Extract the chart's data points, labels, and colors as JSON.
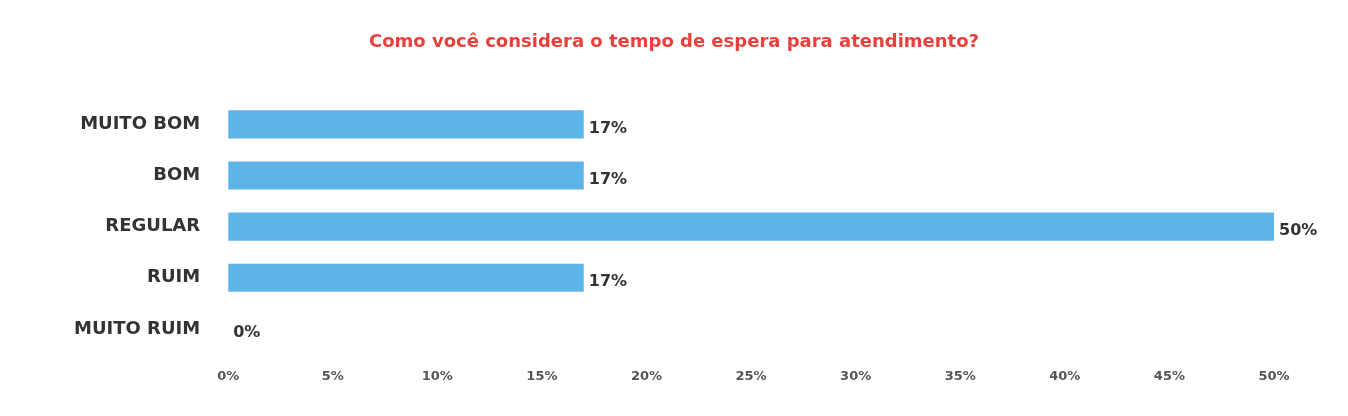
{
  "chart_data": {
    "type": "bar",
    "orientation": "horizontal",
    "title": "Como você considera o tempo de espera para atendimento?",
    "categories": [
      "MUITO BOM",
      "BOM",
      "REGULAR",
      "RUIM",
      "MUITO RUIM"
    ],
    "values": [
      17,
      17,
      50,
      17,
      0
    ],
    "value_labels": [
      "17%",
      "17%",
      "50%",
      "17%",
      "0%"
    ],
    "color": "#5cb4e8",
    "xlim": [
      0,
      50
    ],
    "xticks": [
      {
        "value": 0,
        "label": "0%"
      },
      {
        "value": 5,
        "label": "5%"
      },
      {
        "value": 10,
        "label": "10%"
      },
      {
        "value": 15,
        "label": "15%"
      },
      {
        "value": 20,
        "label": "20%"
      },
      {
        "value": 25,
        "label": "25%"
      },
      {
        "value": 30,
        "label": "30%"
      },
      {
        "value": 35,
        "label": "35%"
      },
      {
        "value": 40,
        "label": "40%"
      },
      {
        "value": 45,
        "label": "45%"
      },
      {
        "value": 50,
        "label": "50%"
      }
    ],
    "grid": false,
    "legend": false
  }
}
